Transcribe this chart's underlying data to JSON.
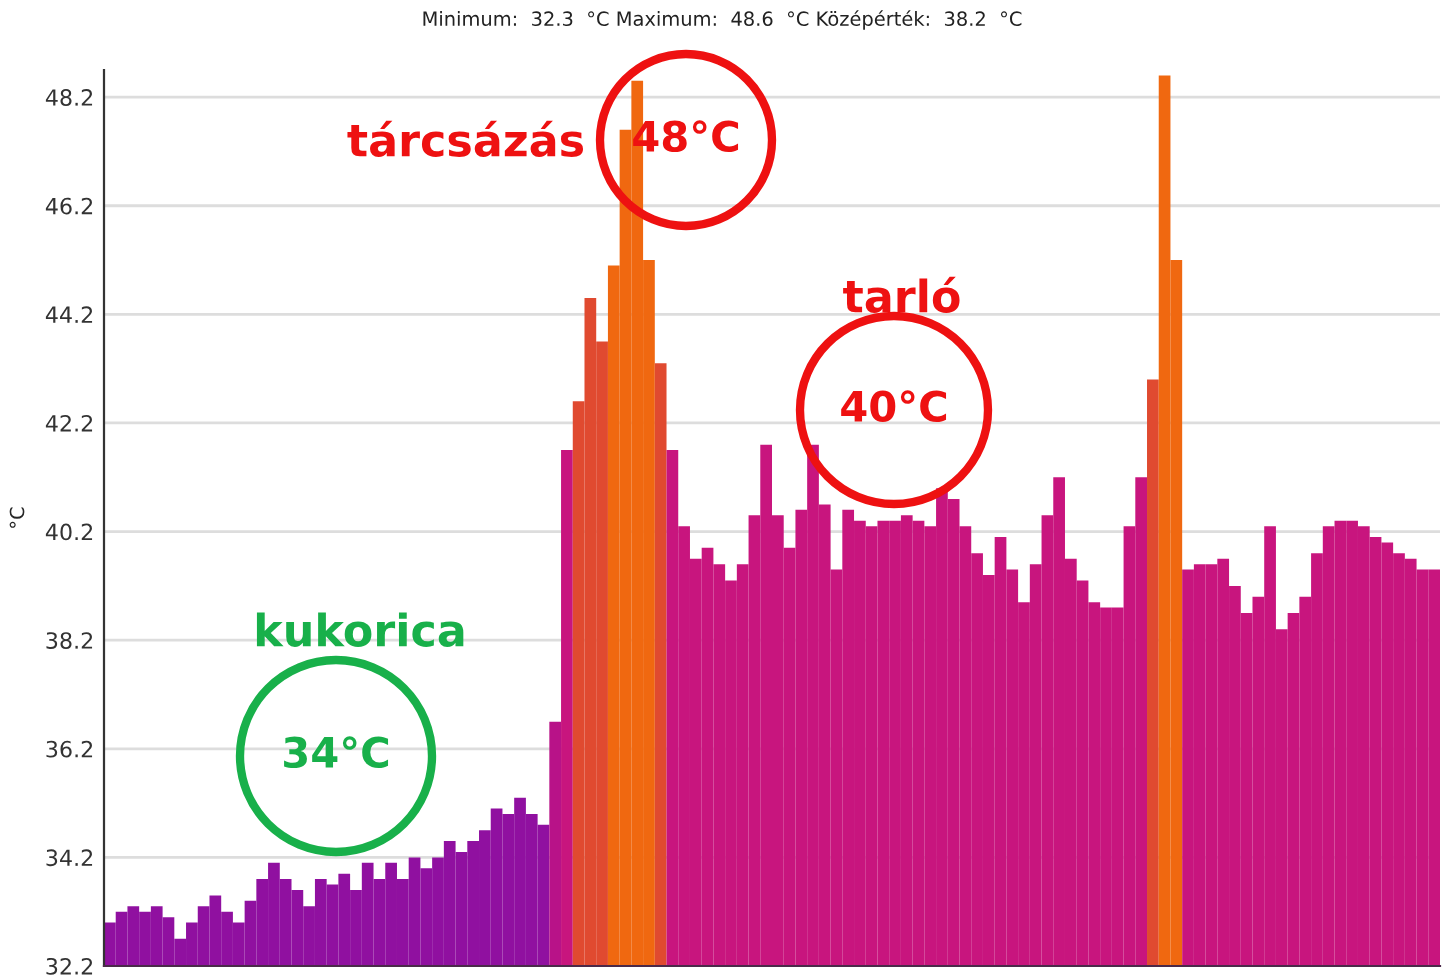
{
  "chart_data": {
    "type": "bar",
    "title": "Minimum:  32.3  °C Maximum:  48.6  °C Középérték:  38.2  °C",
    "ylabel": "°C",
    "categories": [
      null,
      null,
      null,
      null,
      null,
      null,
      null,
      null,
      null,
      null,
      null,
      null,
      null,
      null,
      null,
      null,
      null,
      null,
      null,
      null,
      null,
      null,
      null,
      null,
      null,
      null,
      null,
      null,
      null,
      null,
      null,
      null,
      null,
      null,
      null,
      null,
      null,
      null,
      null,
      null,
      null,
      null,
      null,
      null,
      null,
      null,
      null,
      null,
      null,
      null,
      null,
      null,
      null,
      null,
      null,
      null,
      null,
      null,
      null,
      null,
      null,
      null,
      null,
      null,
      null,
      null,
      null,
      null,
      null,
      null,
      null,
      null,
      null,
      null,
      null,
      null,
      null,
      null,
      null,
      null,
      null,
      null,
      null,
      null,
      null,
      null,
      null,
      null,
      null,
      null,
      null,
      null,
      null,
      null,
      null,
      null,
      null,
      null,
      null,
      null,
      null,
      null,
      null,
      null,
      null,
      null,
      null,
      null,
      null,
      null,
      null,
      null,
      null,
      null
    ],
    "values": [
      33.0,
      33.2,
      33.3,
      33.2,
      33.3,
      33.1,
      32.7,
      33.0,
      33.3,
      33.5,
      33.2,
      33.0,
      33.4,
      33.8,
      34.1,
      33.8,
      33.6,
      33.3,
      33.8,
      33.7,
      33.9,
      33.6,
      34.1,
      33.8,
      34.1,
      33.8,
      34.2,
      34.0,
      34.2,
      34.5,
      34.3,
      34.5,
      34.7,
      35.1,
      35.0,
      35.3,
      35.0,
      34.8,
      36.7,
      41.7,
      42.6,
      44.5,
      43.7,
      45.1,
      47.6,
      48.5,
      45.2,
      43.3,
      41.7,
      40.3,
      39.7,
      39.9,
      39.6,
      39.3,
      39.6,
      40.5,
      41.8,
      40.5,
      39.9,
      40.6,
      41.8,
      40.7,
      39.5,
      40.6,
      40.4,
      40.3,
      40.4,
      40.4,
      40.5,
      40.4,
      40.3,
      41.0,
      40.8,
      40.3,
      39.8,
      39.4,
      40.1,
      39.5,
      38.9,
      39.6,
      40.5,
      41.2,
      39.7,
      39.3,
      38.9,
      38.8,
      38.8,
      40.3,
      41.2,
      43.0,
      48.6,
      45.2,
      39.5,
      39.6,
      39.6,
      39.7,
      39.2,
      38.7,
      39.0,
      40.3,
      38.4,
      38.7,
      39.0,
      39.8,
      40.3,
      40.4,
      40.4,
      40.3,
      40.1,
      40.0,
      39.8,
      39.7,
      39.5,
      39.5
    ],
    "colors": [
      "#9010a0",
      "#9010a0",
      "#9010a0",
      "#9010a0",
      "#9010a0",
      "#9010a0",
      "#9010a0",
      "#9010a0",
      "#9010a0",
      "#9010a0",
      "#9010a0",
      "#9010a0",
      "#9010a0",
      "#9010a0",
      "#9010a0",
      "#9010a0",
      "#9010a0",
      "#9010a0",
      "#9010a0",
      "#9010a0",
      "#9010a0",
      "#9010a0",
      "#9010a0",
      "#9010a0",
      "#9010a0",
      "#9010a0",
      "#9010a0",
      "#9010a0",
      "#9010a0",
      "#9010a0",
      "#9010a0",
      "#9010a0",
      "#9010a0",
      "#9010a0",
      "#9010a0",
      "#9010a0",
      "#9010a0",
      "#9010a0",
      "#b81288",
      "#c8157e",
      "#e04a30",
      "#e04a30",
      "#e04a30",
      "#f06810",
      "#f06810",
      "#f06810",
      "#f06810",
      "#e04a30",
      "#c8157e",
      "#c8157e",
      "#c8157e",
      "#c8157e",
      "#c8157e",
      "#c8157e",
      "#c8157e",
      "#c8157e",
      "#c8157e",
      "#c8157e",
      "#c8157e",
      "#c8157e",
      "#c8157e",
      "#c8157e",
      "#c8157e",
      "#c8157e",
      "#c8157e",
      "#c8157e",
      "#c8157e",
      "#c8157e",
      "#c8157e",
      "#c8157e",
      "#c8157e",
      "#c8157e",
      "#c8157e",
      "#c8157e",
      "#c8157e",
      "#c8157e",
      "#c8157e",
      "#c8157e",
      "#c8157e",
      "#c8157e",
      "#c8157e",
      "#c8157e",
      "#c8157e",
      "#c8157e",
      "#c8157e",
      "#c8157e",
      "#c8157e",
      "#c8157e",
      "#c8157e",
      "#e04a30",
      "#f06810",
      "#f06810",
      "#c8157e",
      "#c8157e",
      "#c8157e",
      "#c8157e",
      "#c8157e",
      "#c8157e",
      "#c8157e",
      "#c8157e",
      "#c8157e",
      "#c8157e",
      "#c8157e",
      "#c8157e",
      "#c8157e",
      "#c8157e",
      "#c8157e",
      "#c8157e",
      "#c8157e",
      "#c8157e",
      "#c8157e",
      "#c8157e",
      "#c8157e",
      "#c8157e"
    ],
    "ylim": [
      32.2,
      48.7
    ],
    "yticks": [
      32.2,
      34.2,
      36.2,
      38.2,
      40.2,
      42.2,
      44.2,
      46.2,
      48.2
    ],
    "grid": "y",
    "tick_labels": "y",
    "annotations": [
      "tárcsázás",
      "48°C",
      "tarló",
      "40°C",
      "kukorica",
      "34°C"
    ]
  }
}
